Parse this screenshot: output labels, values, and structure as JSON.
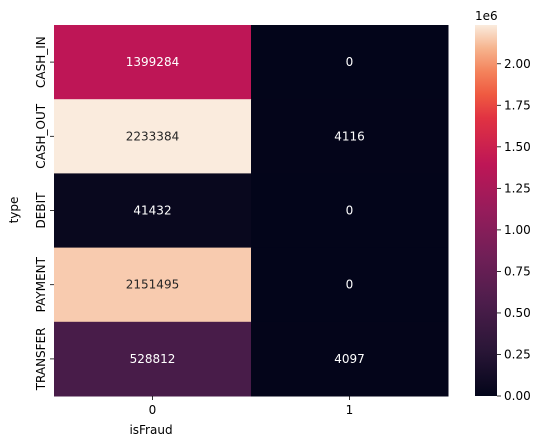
{
  "chart_data": {
    "type": "heatmap",
    "title": "",
    "xlabel": "isFraud",
    "ylabel": "type",
    "x_categories": [
      "0",
      "1"
    ],
    "y_categories": [
      "CASH_IN",
      "CASH_OUT",
      "DEBIT",
      "PAYMENT",
      "TRANSFER"
    ],
    "values": [
      [
        1399284,
        0
      ],
      [
        2233384,
        4116
      ],
      [
        41432,
        0
      ],
      [
        2151495,
        0
      ],
      [
        528812,
        4097
      ]
    ],
    "cell_labels": [
      [
        "1399284",
        "0"
      ],
      [
        "2233384",
        "4116"
      ],
      [
        "41432",
        "0"
      ],
      [
        "2151495",
        "0"
      ],
      [
        "528812",
        "4097"
      ]
    ],
    "colormap": "rocket",
    "colorbar": {
      "range": [
        0,
        2233384
      ],
      "ticks": [
        0.0,
        0.25,
        0.5,
        0.75,
        1.0,
        1.25,
        1.5,
        1.75,
        2.0
      ],
      "tick_labels": [
        "0.00",
        "0.25",
        "0.50",
        "0.75",
        "1.00",
        "1.25",
        "1.50",
        "1.75",
        "2.00"
      ],
      "scale_label": "1e6"
    }
  }
}
